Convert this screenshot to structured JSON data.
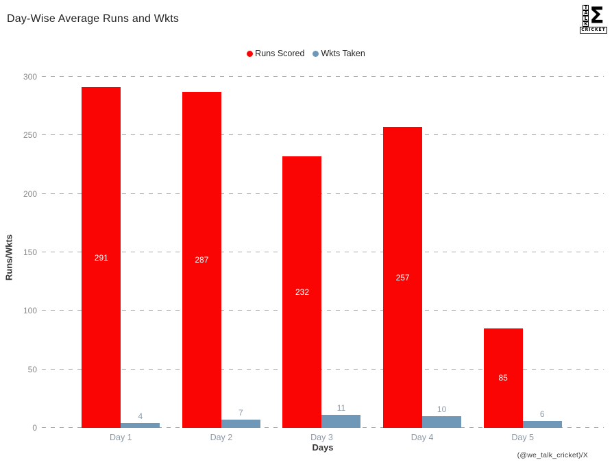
{
  "header": {
    "title": "Day-Wise Average Runs and Wkts"
  },
  "logo": {
    "letters": [
      "T",
      "A",
      "L",
      "K"
    ],
    "symbol": "Σ",
    "bottom_text": "CRICKET"
  },
  "legend": [
    {
      "label": "Runs Scored",
      "color": "#fb0404"
    },
    {
      "label": "Wkts Taken",
      "color": "#6e97b8"
    }
  ],
  "chart_data": {
    "type": "bar",
    "title": "Day-Wise Average Runs and Wkts",
    "categories": [
      "Day 1",
      "Day 2",
      "Day 3",
      "Day 4",
      "Day 5"
    ],
    "series": [
      {
        "name": "Runs Scored",
        "color": "#fb0404",
        "values": [
          291,
          287,
          232,
          257,
          85
        ],
        "label_position": "inside-middle",
        "label_color": "#ffffff"
      },
      {
        "name": "Wkts Taken",
        "color": "#6e97b8",
        "values": [
          4,
          7,
          11,
          10,
          6
        ],
        "label_position": "above",
        "label_color": "#8c9cab"
      }
    ],
    "xlabel": "Days",
    "ylabel": "Runs/Wkts",
    "ylim": [
      0,
      300
    ],
    "yticks": [
      0,
      50,
      100,
      150,
      200,
      250,
      300
    ],
    "grid": "horizontal-dashed",
    "legend_position": "top-center"
  },
  "footer": {
    "credit": "(@we_talk_cricket)/X"
  }
}
